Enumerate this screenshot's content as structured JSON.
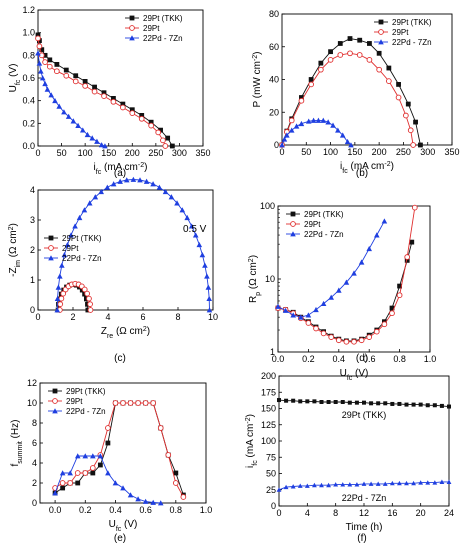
{
  "colors": {
    "black": "#111111",
    "red": "#e03030",
    "blue": "#1f3fe0"
  },
  "panel_labels": [
    "(a)",
    "(b)",
    "(c)",
    "(d)",
    "(e)",
    "(f)"
  ],
  "chart_data": [
    {
      "id": "a",
      "type": "line",
      "xlabel": "i",
      "xlabel_sub": "fc",
      "xlabel_unit": " (mA cm",
      "xlabel_sup": "-2",
      "xlabel_end": ")",
      "ylabel": "U",
      "ylabel_sub": "fc",
      "ylabel_unit": " (V)",
      "xlim": [
        0,
        350
      ],
      "ylim": [
        0,
        1.2
      ],
      "xticks": [
        0,
        50,
        100,
        150,
        200,
        250,
        300,
        350
      ],
      "yticks": [
        0.0,
        0.2,
        0.4,
        0.6,
        0.8,
        1.0,
        1.2
      ],
      "yticks_labels": [
        "0.0",
        "0.2",
        "0.4",
        "0.6",
        "0.8",
        "1.0",
        "1.2"
      ],
      "legend": "top-right",
      "series": [
        {
          "name": "29Pt (TKK)",
          "color": "black",
          "marker": "square-filled",
          "x": [
            0,
            3,
            8,
            15,
            25,
            40,
            60,
            80,
            100,
            120,
            140,
            160,
            180,
            200,
            220,
            240,
            260,
            275,
            285
          ],
          "y": [
            0.98,
            0.93,
            0.85,
            0.8,
            0.76,
            0.72,
            0.67,
            0.62,
            0.57,
            0.52,
            0.47,
            0.42,
            0.37,
            0.32,
            0.27,
            0.21,
            0.14,
            0.07,
            0.0
          ]
        },
        {
          "name": "29Pt",
          "color": "red",
          "marker": "circle-open",
          "x": [
            0,
            3,
            8,
            15,
            25,
            40,
            60,
            80,
            100,
            120,
            140,
            160,
            180,
            200,
            220,
            240,
            255,
            265,
            270
          ],
          "y": [
            0.95,
            0.88,
            0.8,
            0.74,
            0.7,
            0.66,
            0.62,
            0.57,
            0.53,
            0.48,
            0.44,
            0.39,
            0.34,
            0.29,
            0.24,
            0.18,
            0.12,
            0.05,
            0.0
          ]
        },
        {
          "name": "22Pd - 7Zn",
          "color": "blue",
          "marker": "triangle-filled",
          "x": [
            0,
            3,
            6,
            10,
            15,
            20,
            28,
            36,
            45,
            55,
            65,
            75,
            85,
            95,
            105,
            115,
            125,
            135,
            142
          ],
          "y": [
            0.82,
            0.73,
            0.66,
            0.6,
            0.55,
            0.5,
            0.45,
            0.4,
            0.35,
            0.3,
            0.26,
            0.22,
            0.18,
            0.14,
            0.1,
            0.07,
            0.04,
            0.01,
            0.0
          ]
        }
      ]
    },
    {
      "id": "b",
      "type": "line",
      "xlabel": "i",
      "xlabel_sub": "fc",
      "xlabel_unit": " (mA cm",
      "xlabel_sup": "-2",
      "xlabel_end": ")",
      "ylabel": "P (mW cm",
      "ylabel_sup": "-2",
      "ylabel_end": ")",
      "xlim": [
        0,
        350
      ],
      "ylim": [
        0,
        80
      ],
      "xticks": [
        0,
        50,
        100,
        150,
        200,
        250,
        300,
        350
      ],
      "yticks": [
        0,
        20,
        40,
        60,
        80
      ],
      "yticks_labels": [
        "0",
        "20",
        "40",
        "60",
        "80"
      ],
      "legend": "top-right",
      "series": [
        {
          "name": "29Pt (TKK)",
          "color": "black",
          "marker": "square-filled",
          "x": [
            0,
            10,
            20,
            40,
            60,
            80,
            100,
            120,
            140,
            160,
            180,
            200,
            220,
            240,
            260,
            275,
            285
          ],
          "y": [
            0,
            8.5,
            16,
            29,
            40,
            50,
            57,
            62,
            65,
            64,
            62,
            56,
            47,
            37,
            25,
            14,
            0
          ]
        },
        {
          "name": "29Pt",
          "color": "red",
          "marker": "circle-open",
          "x": [
            0,
            10,
            20,
            40,
            60,
            80,
            100,
            120,
            140,
            160,
            180,
            200,
            220,
            240,
            255,
            265,
            270
          ],
          "y": [
            0,
            8,
            15,
            27,
            37,
            46,
            52,
            55,
            56,
            55,
            52,
            46,
            39,
            29,
            18,
            9,
            0
          ]
        },
        {
          "name": "22Pd - 7Zn",
          "color": "blue",
          "marker": "triangle-filled",
          "x": [
            0,
            5,
            10,
            20,
            30,
            40,
            55,
            65,
            75,
            85,
            95,
            105,
            115,
            125,
            135,
            142
          ],
          "y": [
            0,
            3.5,
            6,
            9,
            11.5,
            13,
            14.5,
            15,
            15,
            15,
            14,
            12,
            9,
            6,
            2,
            0
          ]
        }
      ]
    },
    {
      "id": "c",
      "type": "scatter",
      "xlabel": "Z",
      "xlabel_sub": "re",
      "xlabel_unit": " (Ω cm",
      "xlabel_sup": "2",
      "xlabel_end": ")",
      "ylabel": "-Z",
      "ylabel_sub": "im",
      "ylabel_unit": " (Ω cm",
      "ylabel_sup": "2",
      "ylabel_end": ")",
      "xlim": [
        0,
        10
      ],
      "ylim": [
        0,
        4
      ],
      "xticks": [
        0,
        2,
        4,
        6,
        8,
        10
      ],
      "yticks": [
        0,
        1,
        2,
        3,
        4
      ],
      "yticks_labels": [
        "0",
        "1",
        "2",
        "3",
        "4"
      ],
      "annotation": "0.5 V",
      "legend": "left",
      "series": [
        {
          "name": "29Pt (TKK)",
          "color": "black",
          "marker": "square-filled",
          "semicircle": {
            "start": 1.15,
            "end": 2.85
          }
        },
        {
          "name": "29Pt",
          "color": "red",
          "marker": "circle-open",
          "semicircle": {
            "start": 1.25,
            "end": 3.0
          }
        },
        {
          "name": "22Pd - 7Zn",
          "color": "blue",
          "marker": "triangle-filled",
          "semicircle": {
            "start": 1.1,
            "end": 9.8
          }
        }
      ]
    },
    {
      "id": "d",
      "type": "line",
      "yscale": "log",
      "xlabel": "U",
      "xlabel_sub": "fc",
      "xlabel_unit": " (V)",
      "ylabel": "R",
      "ylabel_sub": "p",
      "ylabel_unit": " (Ω cm",
      "ylabel_sup": "2",
      "ylabel_end": ")",
      "xlim": [
        0,
        1.0
      ],
      "ylim": [
        1,
        100
      ],
      "xticks": [
        0.0,
        0.2,
        0.4,
        0.6,
        0.8,
        1.0
      ],
      "xticks_labels": [
        "0.0",
        "0.2",
        "0.4",
        "0.6",
        "0.8",
        "1.0"
      ],
      "yticks": [
        1,
        10,
        100
      ],
      "yticks_labels": [
        "1",
        "10",
        "100"
      ],
      "legend": "top-left",
      "series": [
        {
          "name": "29Pt (TKK)",
          "color": "black",
          "marker": "square-filled",
          "x": [
            0.0,
            0.05,
            0.1,
            0.15,
            0.2,
            0.25,
            0.3,
            0.35,
            0.4,
            0.45,
            0.5,
            0.55,
            0.6,
            0.65,
            0.7,
            0.75,
            0.8,
            0.85,
            0.88
          ],
          "y": [
            4.0,
            3.8,
            3.5,
            3.0,
            2.6,
            2.2,
            1.9,
            1.65,
            1.5,
            1.42,
            1.42,
            1.5,
            1.7,
            2.0,
            2.6,
            4.0,
            8.0,
            18,
            32
          ]
        },
        {
          "name": "29Pt",
          "color": "red",
          "marker": "circle-open",
          "x": [
            0.0,
            0.05,
            0.1,
            0.15,
            0.2,
            0.25,
            0.3,
            0.35,
            0.4,
            0.45,
            0.5,
            0.55,
            0.6,
            0.65,
            0.7,
            0.75,
            0.8,
            0.85,
            0.9
          ],
          "y": [
            4.0,
            3.8,
            3.4,
            2.9,
            2.5,
            2.1,
            1.8,
            1.6,
            1.45,
            1.38,
            1.38,
            1.45,
            1.6,
            1.9,
            2.4,
            3.4,
            6.0,
            20,
            95
          ]
        },
        {
          "name": "22Pd - 7Zn",
          "color": "blue",
          "marker": "triangle-filled",
          "x": [
            0.0,
            0.05,
            0.1,
            0.15,
            0.2,
            0.25,
            0.3,
            0.35,
            0.4,
            0.45,
            0.5,
            0.55,
            0.6,
            0.65,
            0.7
          ],
          "y": [
            4.2,
            3.7,
            3.2,
            3.0,
            3.2,
            3.8,
            4.6,
            5.6,
            7.0,
            9.0,
            12,
            17,
            26,
            40,
            62
          ]
        }
      ]
    },
    {
      "id": "e",
      "type": "line",
      "xlabel": "U",
      "xlabel_sub": "fc",
      "xlabel_unit": " (V)",
      "ylabel": "f",
      "ylabel_sub": "summit",
      "ylabel_unit": " (Hz)",
      "xlim": [
        -0.1,
        1.0
      ],
      "ylim": [
        0,
        12
      ],
      "xticks": [
        0.0,
        0.2,
        0.4,
        0.6,
        0.8,
        1.0
      ],
      "xticks_labels": [
        "0.0",
        "0.2",
        "0.4",
        "0.6",
        "0.8",
        "1.0"
      ],
      "yticks": [
        0,
        2,
        4,
        6,
        8,
        10,
        12
      ],
      "yticks_labels": [
        "0",
        "2",
        "4",
        "6",
        "8",
        "10",
        "12"
      ],
      "legend": "top-left",
      "series": [
        {
          "name": "29Pt (TKK)",
          "color": "black",
          "marker": "square-filled",
          "x": [
            0.0,
            0.05,
            0.1,
            0.15,
            0.2,
            0.25,
            0.3,
            0.35,
            0.4,
            0.45,
            0.5,
            0.55,
            0.6,
            0.65,
            0.7,
            0.75,
            0.8,
            0.85
          ],
          "y": [
            1.0,
            1.5,
            2.0,
            2.0,
            3.0,
            3.0,
            3.8,
            6.0,
            10,
            10,
            10,
            10,
            10,
            10,
            7.5,
            4.8,
            3.0,
            0.8
          ]
        },
        {
          "name": "29Pt",
          "color": "red",
          "marker": "circle-open",
          "x": [
            0.0,
            0.05,
            0.1,
            0.15,
            0.2,
            0.25,
            0.3,
            0.35,
            0.4,
            0.45,
            0.5,
            0.55,
            0.6,
            0.65,
            0.7,
            0.75,
            0.8,
            0.85
          ],
          "y": [
            1.5,
            2.0,
            2.0,
            3.0,
            3.0,
            3.5,
            4.8,
            7.5,
            10,
            10,
            10,
            10,
            10,
            10,
            7.5,
            4.8,
            2.0,
            0.6
          ]
        },
        {
          "name": "22Pd - 7Zn",
          "color": "blue",
          "marker": "triangle-filled",
          "x": [
            0.0,
            0.05,
            0.1,
            0.15,
            0.2,
            0.25,
            0.3,
            0.35,
            0.4,
            0.45,
            0.5,
            0.55,
            0.6,
            0.65,
            0.7
          ],
          "y": [
            1.0,
            3.0,
            3.0,
            4.7,
            4.7,
            4.7,
            4.7,
            3.0,
            2.0,
            1.5,
            0.8,
            0.4,
            0.15,
            0.05,
            0.0
          ]
        }
      ]
    },
    {
      "id": "f",
      "type": "line",
      "xlabel": "Time (h)",
      "ylabel": "i",
      "ylabel_sub": "fc",
      "ylabel_unit": " (mA cm",
      "ylabel_sup": "-2",
      "ylabel_end": ")",
      "xlim": [
        0,
        24
      ],
      "ylim": [
        0,
        200
      ],
      "xticks": [
        0,
        4,
        8,
        12,
        16,
        20,
        24
      ],
      "yticks": [
        0,
        25,
        50,
        75,
        100,
        125,
        150,
        175,
        200
      ],
      "yticks_labels": [
        "0",
        "25",
        "50",
        "75",
        "100",
        "125",
        "150",
        "175",
        "200"
      ],
      "series": [
        {
          "name": "29Pt (TKK)",
          "color": "black",
          "marker": "square-filled",
          "inline_label": "29Pt (TKK)",
          "x": [
            0,
            1,
            2,
            3,
            4,
            5,
            6,
            7,
            8,
            9,
            10,
            11,
            12,
            13,
            14,
            15,
            16,
            17,
            18,
            19,
            20,
            21,
            22,
            23,
            24
          ],
          "y": [
            163,
            162,
            162,
            161,
            161,
            161,
            160,
            160,
            160,
            160,
            159,
            159,
            159,
            158,
            158,
            158,
            157,
            157,
            156,
            156,
            156,
            155,
            155,
            154,
            153
          ]
        },
        {
          "name": "22Pd - 7Zn",
          "color": "blue",
          "marker": "triangle-filled",
          "inline_label": "22Pd - 7Zn",
          "x": [
            0,
            1,
            2,
            3,
            4,
            5,
            6,
            7,
            8,
            9,
            10,
            11,
            12,
            13,
            14,
            15,
            16,
            17,
            18,
            19,
            20,
            21,
            22,
            23,
            24
          ],
          "y": [
            25,
            29,
            30,
            31,
            31,
            32,
            32,
            32,
            33,
            33,
            33,
            33,
            34,
            34,
            34,
            34,
            35,
            35,
            35,
            35,
            36,
            36,
            36,
            37,
            37
          ]
        }
      ]
    }
  ]
}
